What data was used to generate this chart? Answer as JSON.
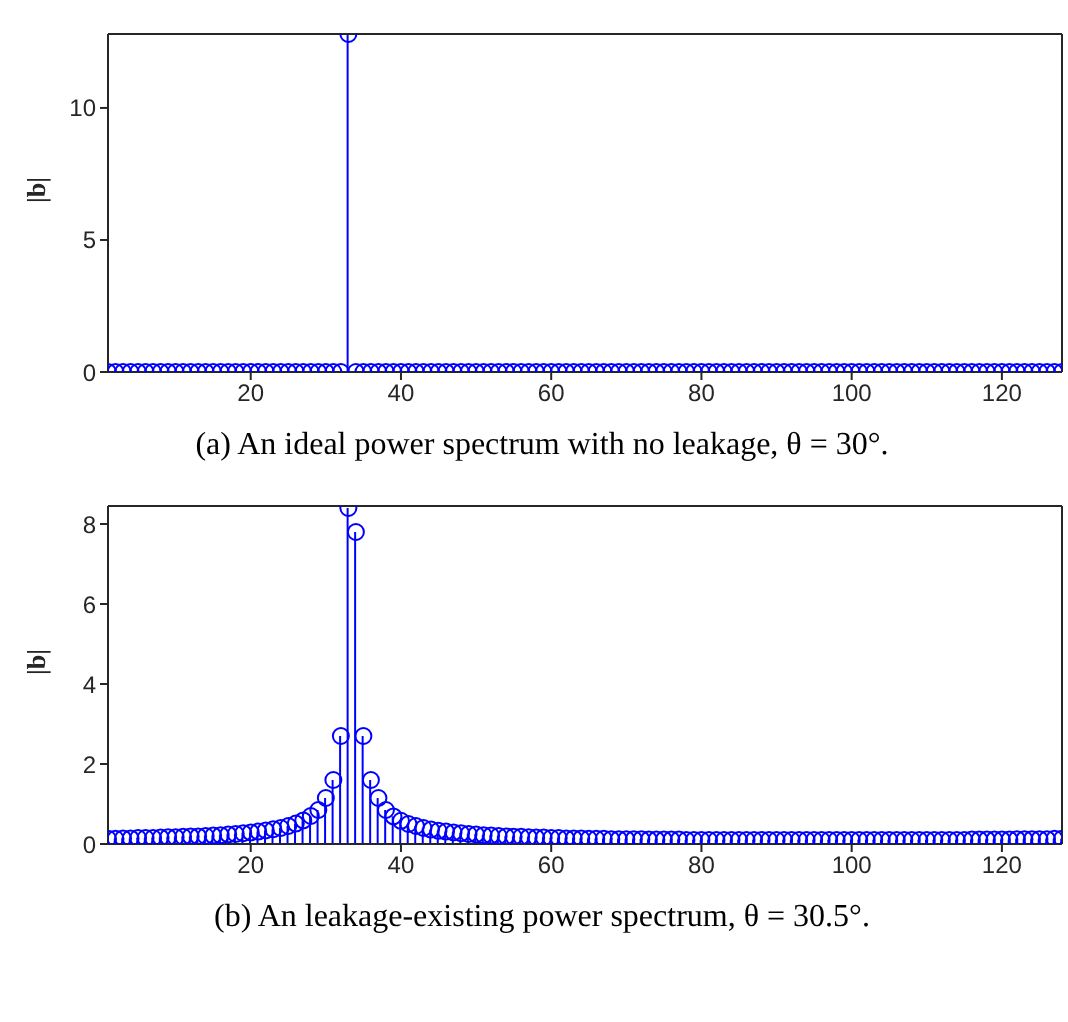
{
  "chart_data": [
    {
      "type": "lollipop",
      "ylabel": "|b|",
      "annotations": [
        "(a) An ideal power spectrum with no leakage, θ = 30°."
      ],
      "marker": "circle",
      "grid": false,
      "xlim": [
        1,
        128
      ],
      "xticks": [
        20,
        40,
        60,
        80,
        100,
        120
      ],
      "ylim": [
        0,
        12.8
      ],
      "yticks": [
        0,
        5,
        10
      ],
      "x": [
        1,
        2,
        3,
        4,
        5,
        6,
        7,
        8,
        9,
        10,
        11,
        12,
        13,
        14,
        15,
        16,
        17,
        18,
        19,
        20,
        21,
        22,
        23,
        24,
        25,
        26,
        27,
        28,
        29,
        30,
        31,
        32,
        33,
        34,
        35,
        36,
        37,
        38,
        39,
        40,
        41,
        42,
        43,
        44,
        45,
        46,
        47,
        48,
        49,
        50,
        51,
        52,
        53,
        54,
        55,
        56,
        57,
        58,
        59,
        60,
        61,
        62,
        63,
        64,
        65,
        66,
        67,
        68,
        69,
        70,
        71,
        72,
        73,
        74,
        75,
        76,
        77,
        78,
        79,
        80,
        81,
        82,
        83,
        84,
        85,
        86,
        87,
        88,
        89,
        90,
        91,
        92,
        93,
        94,
        95,
        96,
        97,
        98,
        99,
        100,
        101,
        102,
        103,
        104,
        105,
        106,
        107,
        108,
        109,
        110,
        111,
        112,
        113,
        114,
        115,
        116,
        117,
        118,
        119,
        120,
        121,
        122,
        123,
        124,
        125,
        126,
        127,
        128
      ],
      "series": [
        {
          "color": "#0000ff",
          "values": [
            0,
            0,
            0,
            0,
            0,
            0,
            0,
            0,
            0,
            0,
            0,
            0,
            0,
            0,
            0,
            0,
            0,
            0,
            0,
            0,
            0,
            0,
            0,
            0,
            0,
            0,
            0,
            0,
            0,
            0,
            0,
            0,
            12.8,
            0,
            0,
            0,
            0,
            0,
            0,
            0,
            0,
            0,
            0,
            0,
            0,
            0,
            0,
            0,
            0,
            0,
            0,
            0,
            0,
            0,
            0,
            0,
            0,
            0,
            0,
            0,
            0,
            0,
            0,
            0,
            0,
            0,
            0,
            0,
            0,
            0,
            0,
            0,
            0,
            0,
            0,
            0,
            0,
            0,
            0,
            0,
            0,
            0,
            0,
            0,
            0,
            0,
            0,
            0,
            0,
            0,
            0,
            0,
            0,
            0,
            0,
            0,
            0,
            0,
            0,
            0,
            0,
            0,
            0,
            0,
            0,
            0,
            0,
            0,
            0,
            0,
            0,
            0,
            0,
            0,
            0,
            0,
            0,
            0,
            0,
            0,
            0,
            0,
            0,
            0,
            0,
            0,
            0,
            0
          ]
        }
      ]
    },
    {
      "type": "lollipop",
      "ylabel": "|b|",
      "annotations": [
        "(b) An leakage-existing power spectrum, θ = 30.5°."
      ],
      "marker": "circle",
      "grid": false,
      "xlim": [
        1,
        128
      ],
      "xticks": [
        20,
        40,
        60,
        80,
        100,
        120
      ],
      "ylim": [
        0,
        8.45
      ],
      "yticks": [
        0,
        2,
        4,
        6,
        8
      ],
      "x": [
        1,
        2,
        3,
        4,
        5,
        6,
        7,
        8,
        9,
        10,
        11,
        12,
        13,
        14,
        15,
        16,
        17,
        18,
        19,
        20,
        21,
        22,
        23,
        24,
        25,
        26,
        27,
        28,
        29,
        30,
        31,
        32,
        33,
        34,
        35,
        36,
        37,
        38,
        39,
        40,
        41,
        42,
        43,
        44,
        45,
        46,
        47,
        48,
        49,
        50,
        51,
        52,
        53,
        54,
        55,
        56,
        57,
        58,
        59,
        60,
        61,
        62,
        63,
        64,
        65,
        66,
        67,
        68,
        69,
        70,
        71,
        72,
        73,
        74,
        75,
        76,
        77,
        78,
        79,
        80,
        81,
        82,
        83,
        84,
        85,
        86,
        87,
        88,
        89,
        90,
        91,
        92,
        93,
        94,
        95,
        96,
        97,
        98,
        99,
        100,
        101,
        102,
        103,
        104,
        105,
        106,
        107,
        108,
        109,
        110,
        111,
        112,
        113,
        114,
        115,
        116,
        117,
        118,
        119,
        120,
        121,
        122,
        123,
        124,
        125,
        126,
        127,
        128
      ],
      "series": [
        {
          "color": "#0000ff",
          "values": [
            0.13,
            0.13,
            0.14,
            0.14,
            0.15,
            0.15,
            0.15,
            0.16,
            0.17,
            0.17,
            0.18,
            0.19,
            0.19,
            0.2,
            0.21,
            0.22,
            0.24,
            0.25,
            0.27,
            0.29,
            0.31,
            0.34,
            0.37,
            0.4,
            0.45,
            0.51,
            0.59,
            0.7,
            0.85,
            1.15,
            1.6,
            2.7,
            8.4,
            7.8,
            2.7,
            1.6,
            1.15,
            0.85,
            0.69,
            0.58,
            0.5,
            0.45,
            0.4,
            0.36,
            0.33,
            0.31,
            0.29,
            0.27,
            0.25,
            0.24,
            0.22,
            0.21,
            0.2,
            0.19,
            0.18,
            0.18,
            0.17,
            0.16,
            0.16,
            0.15,
            0.15,
            0.14,
            0.14,
            0.14,
            0.13,
            0.13,
            0.13,
            0.12,
            0.12,
            0.12,
            0.12,
            0.12,
            0.11,
            0.11,
            0.11,
            0.11,
            0.11,
            0.1,
            0.1,
            0.1,
            0.1,
            0.1,
            0.1,
            0.1,
            0.1,
            0.1,
            0.1,
            0.1,
            0.1,
            0.1,
            0.1,
            0.1,
            0.1,
            0.1,
            0.1,
            0.1,
            0.1,
            0.1,
            0.1,
            0.1,
            0.1,
            0.1,
            0.1,
            0.1,
            0.1,
            0.1,
            0.1,
            0.1,
            0.1,
            0.1,
            0.1,
            0.1,
            0.1,
            0.1,
            0.1,
            0.11,
            0.11,
            0.11,
            0.11,
            0.11,
            0.11,
            0.12,
            0.12,
            0.12,
            0.12,
            0.12,
            0.13,
            0.13
          ]
        }
      ]
    }
  ]
}
